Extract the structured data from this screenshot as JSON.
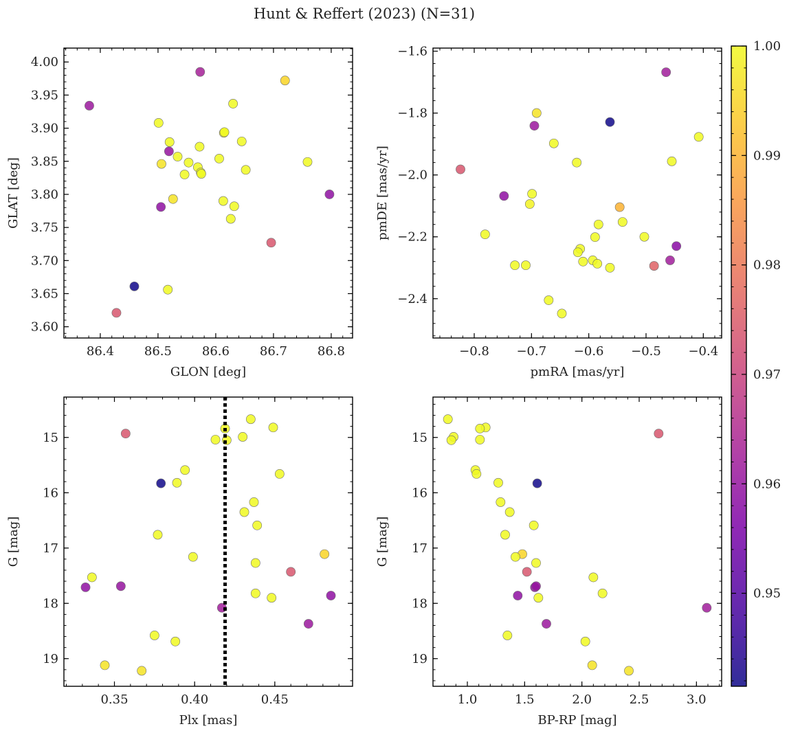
{
  "figure": {
    "title": "Hunt & Reffert (2023) (N=31)"
  },
  "colorbar": {
    "colormap": "plasma",
    "range": [
      0.9415,
      1.0
    ],
    "ticks": [
      0.95,
      0.96,
      0.97,
      0.98,
      0.99,
      1.0
    ],
    "tick_labels": [
      "0.95",
      "0.96",
      "0.97",
      "0.98",
      "0.99",
      "1.00"
    ]
  },
  "chart_data": [
    {
      "type": "scatter",
      "xlabel": "GLON [deg]",
      "ylabel": "GLAT [deg]",
      "xlim": [
        86.337,
        86.837
      ],
      "ylim": [
        3.583,
        4.021
      ],
      "xticks": [
        86.4,
        86.5,
        86.6,
        86.7,
        86.8
      ],
      "xtick_labels": [
        "86.4",
        "86.5",
        "86.6",
        "86.7",
        "86.8"
      ],
      "yticks": [
        3.6,
        3.65,
        3.7,
        3.75,
        3.8,
        3.85,
        3.9,
        3.95,
        4.0
      ],
      "ytick_labels": [
        "3.60",
        "3.65",
        "3.70",
        "3.75",
        "3.80",
        "3.85",
        "3.90",
        "3.95",
        "4.00"
      ],
      "y_inverted": false,
      "points": [
        {
          "x": 86.381,
          "y": 3.934,
          "c": 0.961
        },
        {
          "x": 86.573,
          "y": 3.985,
          "c": 0.963
        },
        {
          "x": 86.72,
          "y": 3.972,
          "c": 0.995
        },
        {
          "x": 86.63,
          "y": 3.937,
          "c": 1.0
        },
        {
          "x": 86.501,
          "y": 3.908,
          "c": 1.0
        },
        {
          "x": 86.614,
          "y": 3.893,
          "c": 0.999
        },
        {
          "x": 86.52,
          "y": 3.879,
          "c": 1.0
        },
        {
          "x": 86.645,
          "y": 3.88,
          "c": 1.0
        },
        {
          "x": 86.572,
          "y": 3.872,
          "c": 1.0
        },
        {
          "x": 86.519,
          "y": 3.865,
          "c": 0.96
        },
        {
          "x": 86.534,
          "y": 3.857,
          "c": 1.0
        },
        {
          "x": 86.606,
          "y": 3.854,
          "c": 1.0
        },
        {
          "x": 86.553,
          "y": 3.848,
          "c": 1.0
        },
        {
          "x": 86.759,
          "y": 3.849,
          "c": 1.0
        },
        {
          "x": 86.506,
          "y": 3.846,
          "c": 0.997
        },
        {
          "x": 86.569,
          "y": 3.841,
          "c": 1.0
        },
        {
          "x": 86.652,
          "y": 3.837,
          "c": 1.0
        },
        {
          "x": 86.574,
          "y": 3.833,
          "c": 1.0
        },
        {
          "x": 86.546,
          "y": 3.83,
          "c": 1.0
        },
        {
          "x": 86.797,
          "y": 3.8,
          "c": 0.959
        },
        {
          "x": 86.526,
          "y": 3.793,
          "c": 0.997
        },
        {
          "x": 86.613,
          "y": 3.79,
          "c": 1.0
        },
        {
          "x": 86.632,
          "y": 3.782,
          "c": 1.0
        },
        {
          "x": 86.505,
          "y": 3.781,
          "c": 0.959
        },
        {
          "x": 86.626,
          "y": 3.763,
          "c": 1.0
        },
        {
          "x": 86.696,
          "y": 3.727,
          "c": 0.974
        },
        {
          "x": 86.459,
          "y": 3.661,
          "c": 0.942
        },
        {
          "x": 86.517,
          "y": 3.656,
          "c": 1.0
        },
        {
          "x": 86.428,
          "y": 3.621,
          "c": 0.974
        },
        {
          "x": 86.575,
          "y": 3.831,
          "c": 1.0
        },
        {
          "x": 86.615,
          "y": 3.894,
          "c": 1.0
        }
      ]
    },
    {
      "type": "scatter",
      "xlabel": "pmRA [mas/yr]",
      "ylabel": "pmDE [mas/yr]",
      "xlim": [
        -0.872,
        -0.368
      ],
      "ylim": [
        -2.527,
        -1.59
      ],
      "xticks": [
        -0.8,
        -0.7,
        -0.6,
        -0.5,
        -0.4
      ],
      "xtick_labels": [
        "−0.8",
        "−0.7",
        "−0.6",
        "−0.5",
        "−0.4"
      ],
      "yticks": [
        -2.4,
        -2.2,
        -2.0,
        -1.8,
        -1.6
      ],
      "ytick_labels": [
        "−2.4",
        "−2.2",
        "−2.0",
        "−1.8",
        "−1.6"
      ],
      "y_inverted": false,
      "points": [
        {
          "x": -0.465,
          "y": -1.668,
          "c": 0.962
        },
        {
          "x": -0.563,
          "y": -1.829,
          "c": 0.942
        },
        {
          "x": -0.691,
          "y": -1.8,
          "c": 0.997
        },
        {
          "x": -0.695,
          "y": -1.841,
          "c": 0.961
        },
        {
          "x": -0.408,
          "y": -1.877,
          "c": 1.0
        },
        {
          "x": -0.661,
          "y": -1.898,
          "c": 1.0
        },
        {
          "x": -0.621,
          "y": -1.96,
          "c": 1.0
        },
        {
          "x": -0.455,
          "y": -1.956,
          "c": 1.0
        },
        {
          "x": -0.824,
          "y": -1.982,
          "c": 0.974
        },
        {
          "x": -0.748,
          "y": -2.068,
          "c": 0.959
        },
        {
          "x": -0.699,
          "y": -2.061,
          "c": 1.0
        },
        {
          "x": -0.703,
          "y": -2.094,
          "c": 0.999
        },
        {
          "x": -0.546,
          "y": -2.104,
          "c": 0.99
        },
        {
          "x": -0.541,
          "y": -2.152,
          "c": 1.0
        },
        {
          "x": -0.583,
          "y": -2.16,
          "c": 1.0
        },
        {
          "x": -0.781,
          "y": -2.192,
          "c": 1.0
        },
        {
          "x": -0.589,
          "y": -2.201,
          "c": 1.0
        },
        {
          "x": -0.503,
          "y": -2.2,
          "c": 1.0
        },
        {
          "x": -0.447,
          "y": -2.23,
          "c": 0.958
        },
        {
          "x": -0.615,
          "y": -2.239,
          "c": 1.0
        },
        {
          "x": -0.619,
          "y": -2.25,
          "c": 1.0
        },
        {
          "x": -0.61,
          "y": -2.28,
          "c": 1.0
        },
        {
          "x": -0.593,
          "y": -2.276,
          "c": 1.0
        },
        {
          "x": -0.458,
          "y": -2.276,
          "c": 0.962
        },
        {
          "x": -0.585,
          "y": -2.287,
          "c": 1.0
        },
        {
          "x": -0.729,
          "y": -2.292,
          "c": 1.0
        },
        {
          "x": -0.71,
          "y": -2.292,
          "c": 1.0
        },
        {
          "x": -0.486,
          "y": -2.294,
          "c": 0.976
        },
        {
          "x": -0.563,
          "y": -2.3,
          "c": 1.0
        },
        {
          "x": -0.67,
          "y": -2.405,
          "c": 1.0
        },
        {
          "x": -0.647,
          "y": -2.448,
          "c": 1.0
        }
      ]
    },
    {
      "type": "scatter",
      "xlabel": "Plx [mas]",
      "ylabel": "G [mag]",
      "xlim": [
        0.3185,
        0.4985
      ],
      "ylim": [
        14.27,
        19.5
      ],
      "xticks": [
        0.35,
        0.4,
        0.45
      ],
      "xtick_labels": [
        "0.35",
        "0.40",
        "0.45"
      ],
      "yticks": [
        15,
        16,
        17,
        18,
        19
      ],
      "ytick_labels": [
        "15",
        "16",
        "17",
        "18",
        "19"
      ],
      "y_inverted": true,
      "vline": 0.419,
      "points": [
        {
          "x": 0.435,
          "y": 14.67,
          "c": 1.0
        },
        {
          "x": 0.449,
          "y": 14.82,
          "c": 1.0
        },
        {
          "x": 0.419,
          "y": 14.84,
          "c": 1.0
        },
        {
          "x": 0.357,
          "y": 14.93,
          "c": 0.974
        },
        {
          "x": 0.43,
          "y": 14.99,
          "c": 1.0
        },
        {
          "x": 0.413,
          "y": 15.04,
          "c": 1.0
        },
        {
          "x": 0.42,
          "y": 15.05,
          "c": 1.0
        },
        {
          "x": 0.394,
          "y": 15.59,
          "c": 1.0
        },
        {
          "x": 0.453,
          "y": 15.66,
          "c": 1.0
        },
        {
          "x": 0.389,
          "y": 15.82,
          "c": 1.0
        },
        {
          "x": 0.379,
          "y": 15.83,
          "c": 0.942
        },
        {
          "x": 0.437,
          "y": 16.17,
          "c": 1.0
        },
        {
          "x": 0.431,
          "y": 16.35,
          "c": 1.0
        },
        {
          "x": 0.439,
          "y": 16.59,
          "c": 1.0
        },
        {
          "x": 0.377,
          "y": 16.76,
          "c": 1.0
        },
        {
          "x": 0.481,
          "y": 17.11,
          "c": 0.995
        },
        {
          "x": 0.399,
          "y": 17.16,
          "c": 1.0
        },
        {
          "x": 0.438,
          "y": 17.27,
          "c": 1.0
        },
        {
          "x": 0.46,
          "y": 17.43,
          "c": 0.974
        },
        {
          "x": 0.336,
          "y": 17.53,
          "c": 1.0
        },
        {
          "x": 0.354,
          "y": 17.69,
          "c": 0.96
        },
        {
          "x": 0.332,
          "y": 17.71,
          "c": 0.959
        },
        {
          "x": 0.438,
          "y": 17.82,
          "c": 1.0
        },
        {
          "x": 0.485,
          "y": 17.86,
          "c": 0.959
        },
        {
          "x": 0.448,
          "y": 17.9,
          "c": 1.0
        },
        {
          "x": 0.417,
          "y": 18.08,
          "c": 0.962
        },
        {
          "x": 0.471,
          "y": 18.37,
          "c": 0.961
        },
        {
          "x": 0.375,
          "y": 18.58,
          "c": 1.0
        },
        {
          "x": 0.388,
          "y": 18.69,
          "c": 1.0
        },
        {
          "x": 0.344,
          "y": 19.12,
          "c": 0.997
        },
        {
          "x": 0.367,
          "y": 19.22,
          "c": 0.997
        }
      ]
    },
    {
      "type": "scatter",
      "xlabel": "BP-RP [mag]",
      "ylabel": "G [mag]",
      "xlim": [
        0.7,
        3.22
      ],
      "ylim": [
        14.27,
        19.5
      ],
      "xticks": [
        1.0,
        1.5,
        2.0,
        2.5,
        3.0
      ],
      "xtick_labels": [
        "1.0",
        "1.5",
        "2.0",
        "2.5",
        "3.0"
      ],
      "yticks": [
        15,
        16,
        17,
        18,
        19
      ],
      "ytick_labels": [
        "15",
        "16",
        "17",
        "18",
        "19"
      ],
      "y_inverted": true,
      "points": [
        {
          "x": 0.83,
          "y": 14.67,
          "c": 1.0
        },
        {
          "x": 1.16,
          "y": 14.82,
          "c": 1.0
        },
        {
          "x": 1.11,
          "y": 14.84,
          "c": 1.0
        },
        {
          "x": 2.67,
          "y": 14.93,
          "c": 0.974
        },
        {
          "x": 0.88,
          "y": 14.99,
          "c": 1.0
        },
        {
          "x": 1.11,
          "y": 15.04,
          "c": 1.0
        },
        {
          "x": 0.86,
          "y": 15.05,
          "c": 1.0
        },
        {
          "x": 1.07,
          "y": 15.59,
          "c": 1.0
        },
        {
          "x": 1.08,
          "y": 15.66,
          "c": 1.0
        },
        {
          "x": 1.27,
          "y": 15.82,
          "c": 1.0
        },
        {
          "x": 1.61,
          "y": 15.83,
          "c": 0.942
        },
        {
          "x": 1.29,
          "y": 16.17,
          "c": 1.0
        },
        {
          "x": 1.37,
          "y": 16.35,
          "c": 1.0
        },
        {
          "x": 1.58,
          "y": 16.59,
          "c": 1.0
        },
        {
          "x": 1.33,
          "y": 16.76,
          "c": 1.0
        },
        {
          "x": 1.48,
          "y": 17.11,
          "c": 0.995
        },
        {
          "x": 1.42,
          "y": 17.16,
          "c": 1.0
        },
        {
          "x": 1.6,
          "y": 17.27,
          "c": 1.0
        },
        {
          "x": 1.52,
          "y": 17.43,
          "c": 0.974
        },
        {
          "x": 2.1,
          "y": 17.53,
          "c": 1.0
        },
        {
          "x": 1.6,
          "y": 17.69,
          "c": 0.96
        },
        {
          "x": 1.59,
          "y": 17.71,
          "c": 0.959
        },
        {
          "x": 2.18,
          "y": 17.82,
          "c": 1.0
        },
        {
          "x": 1.44,
          "y": 17.86,
          "c": 0.959
        },
        {
          "x": 1.62,
          "y": 17.9,
          "c": 1.0
        },
        {
          "x": 3.09,
          "y": 18.08,
          "c": 0.962
        },
        {
          "x": 1.69,
          "y": 18.37,
          "c": 0.961
        },
        {
          "x": 1.35,
          "y": 18.58,
          "c": 1.0
        },
        {
          "x": 2.03,
          "y": 18.69,
          "c": 1.0
        },
        {
          "x": 2.09,
          "y": 19.12,
          "c": 0.997
        },
        {
          "x": 2.41,
          "y": 19.22,
          "c": 0.997
        }
      ]
    }
  ]
}
